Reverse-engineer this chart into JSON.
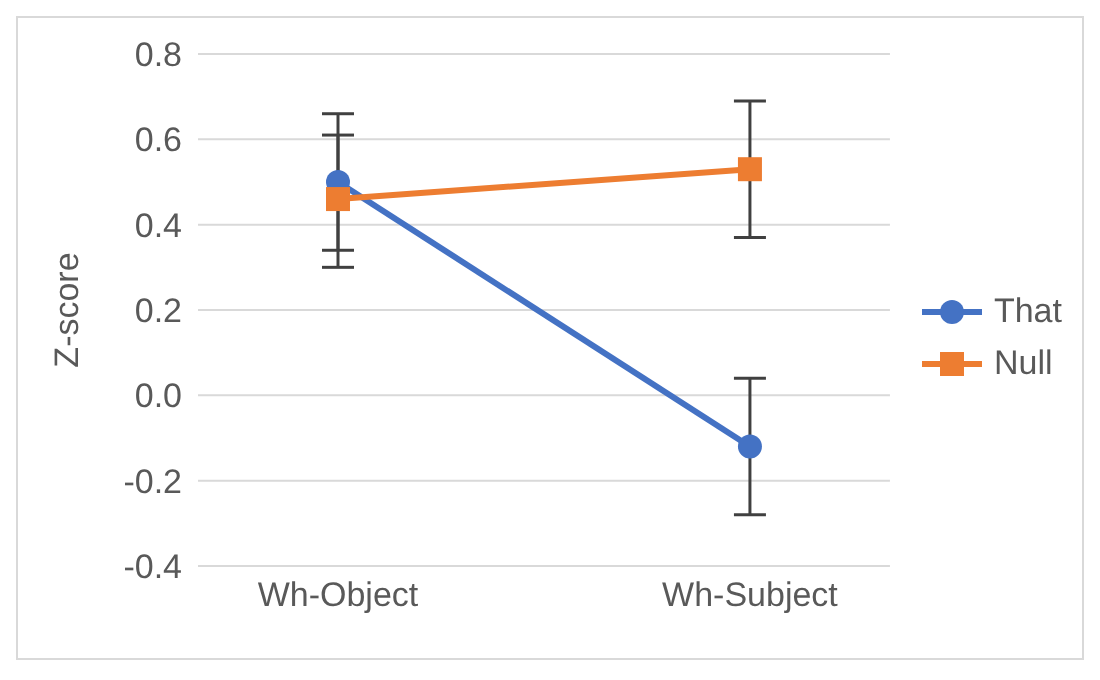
{
  "chart_data": {
    "type": "line",
    "ylabel": "Z-score",
    "categories": [
      "Wh-Object",
      "Wh-Subject"
    ],
    "series": [
      {
        "name": "That",
        "color": "#4472c4",
        "marker": "circle",
        "values": [
          0.5,
          -0.12
        ],
        "errors": [
          [
            0.34,
            0.66
          ],
          [
            -0.28,
            0.04
          ]
        ]
      },
      {
        "name": "Null",
        "color": "#ed7d31",
        "marker": "square",
        "values": [
          0.46,
          0.53
        ],
        "errors": [
          [
            0.3,
            0.61
          ],
          [
            0.37,
            0.69
          ]
        ]
      }
    ],
    "ylim": [
      -0.4,
      0.8
    ],
    "yticks": [
      {
        "value": -0.4,
        "label": "-0.4"
      },
      {
        "value": -0.2,
        "label": "-0.2"
      },
      {
        "value": 0,
        "label": "0.0"
      },
      {
        "value": 0.2,
        "label": "0.2"
      },
      {
        "value": 0.4,
        "label": "0.4"
      },
      {
        "value": 0.6,
        "label": "0.6"
      },
      {
        "value": 0.8,
        "label": "0.8"
      }
    ],
    "grid": "y",
    "legend": "right",
    "line_style": "solid"
  }
}
